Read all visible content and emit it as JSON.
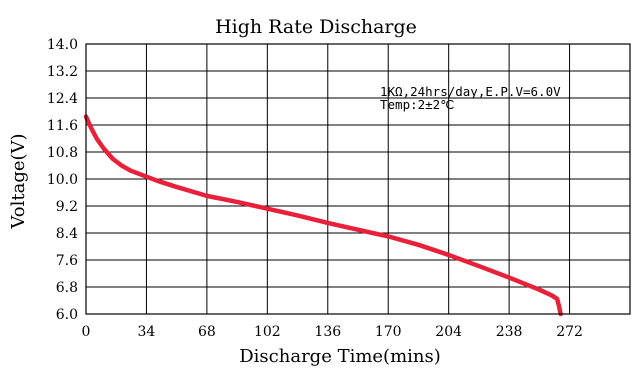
{
  "chart_data": {
    "type": "line",
    "title": "High Rate Discharge",
    "xlabel": "Discharge Time(mins)",
    "ylabel": "Voltage(V)",
    "xlim": [
      0,
      306
    ],
    "ylim": [
      6.0,
      14.0
    ],
    "x_ticks": [
      0,
      34,
      68,
      102,
      136,
      170,
      204,
      238,
      272
    ],
    "x_tick_labels": [
      "0",
      "34",
      "68",
      "102",
      "136",
      "170",
      "204",
      "238",
      "272"
    ],
    "y_ticks": [
      6.0,
      6.8,
      7.6,
      8.4,
      9.2,
      10.0,
      10.8,
      11.6,
      12.4,
      13.2,
      14.0
    ],
    "y_tick_labels": [
      "6.0",
      "6.8",
      "7.6",
      "8.4",
      "9.2",
      "10.0",
      "10.8",
      "11.6",
      "12.4",
      "13.2",
      "14.0"
    ],
    "grid": true,
    "annotations": [
      "1KΩ,24hrs/day,E.P.V=6.0V",
      "Temp:2±2℃"
    ],
    "series": [
      {
        "color": "#e8203a",
        "x": [
          0,
          3,
          6,
          10,
          15,
          20,
          25,
          30,
          40,
          50,
          68,
          85,
          102,
          119,
          136,
          150,
          170,
          187,
          204,
          221,
          238,
          255,
          262,
          265,
          266,
          267
        ],
        "y": [
          11.85,
          11.5,
          11.2,
          10.9,
          10.6,
          10.4,
          10.25,
          10.15,
          9.95,
          9.78,
          9.5,
          9.32,
          9.12,
          8.92,
          8.7,
          8.53,
          8.3,
          8.05,
          7.75,
          7.42,
          7.08,
          6.72,
          6.55,
          6.45,
          6.25,
          6.0
        ]
      }
    ]
  }
}
